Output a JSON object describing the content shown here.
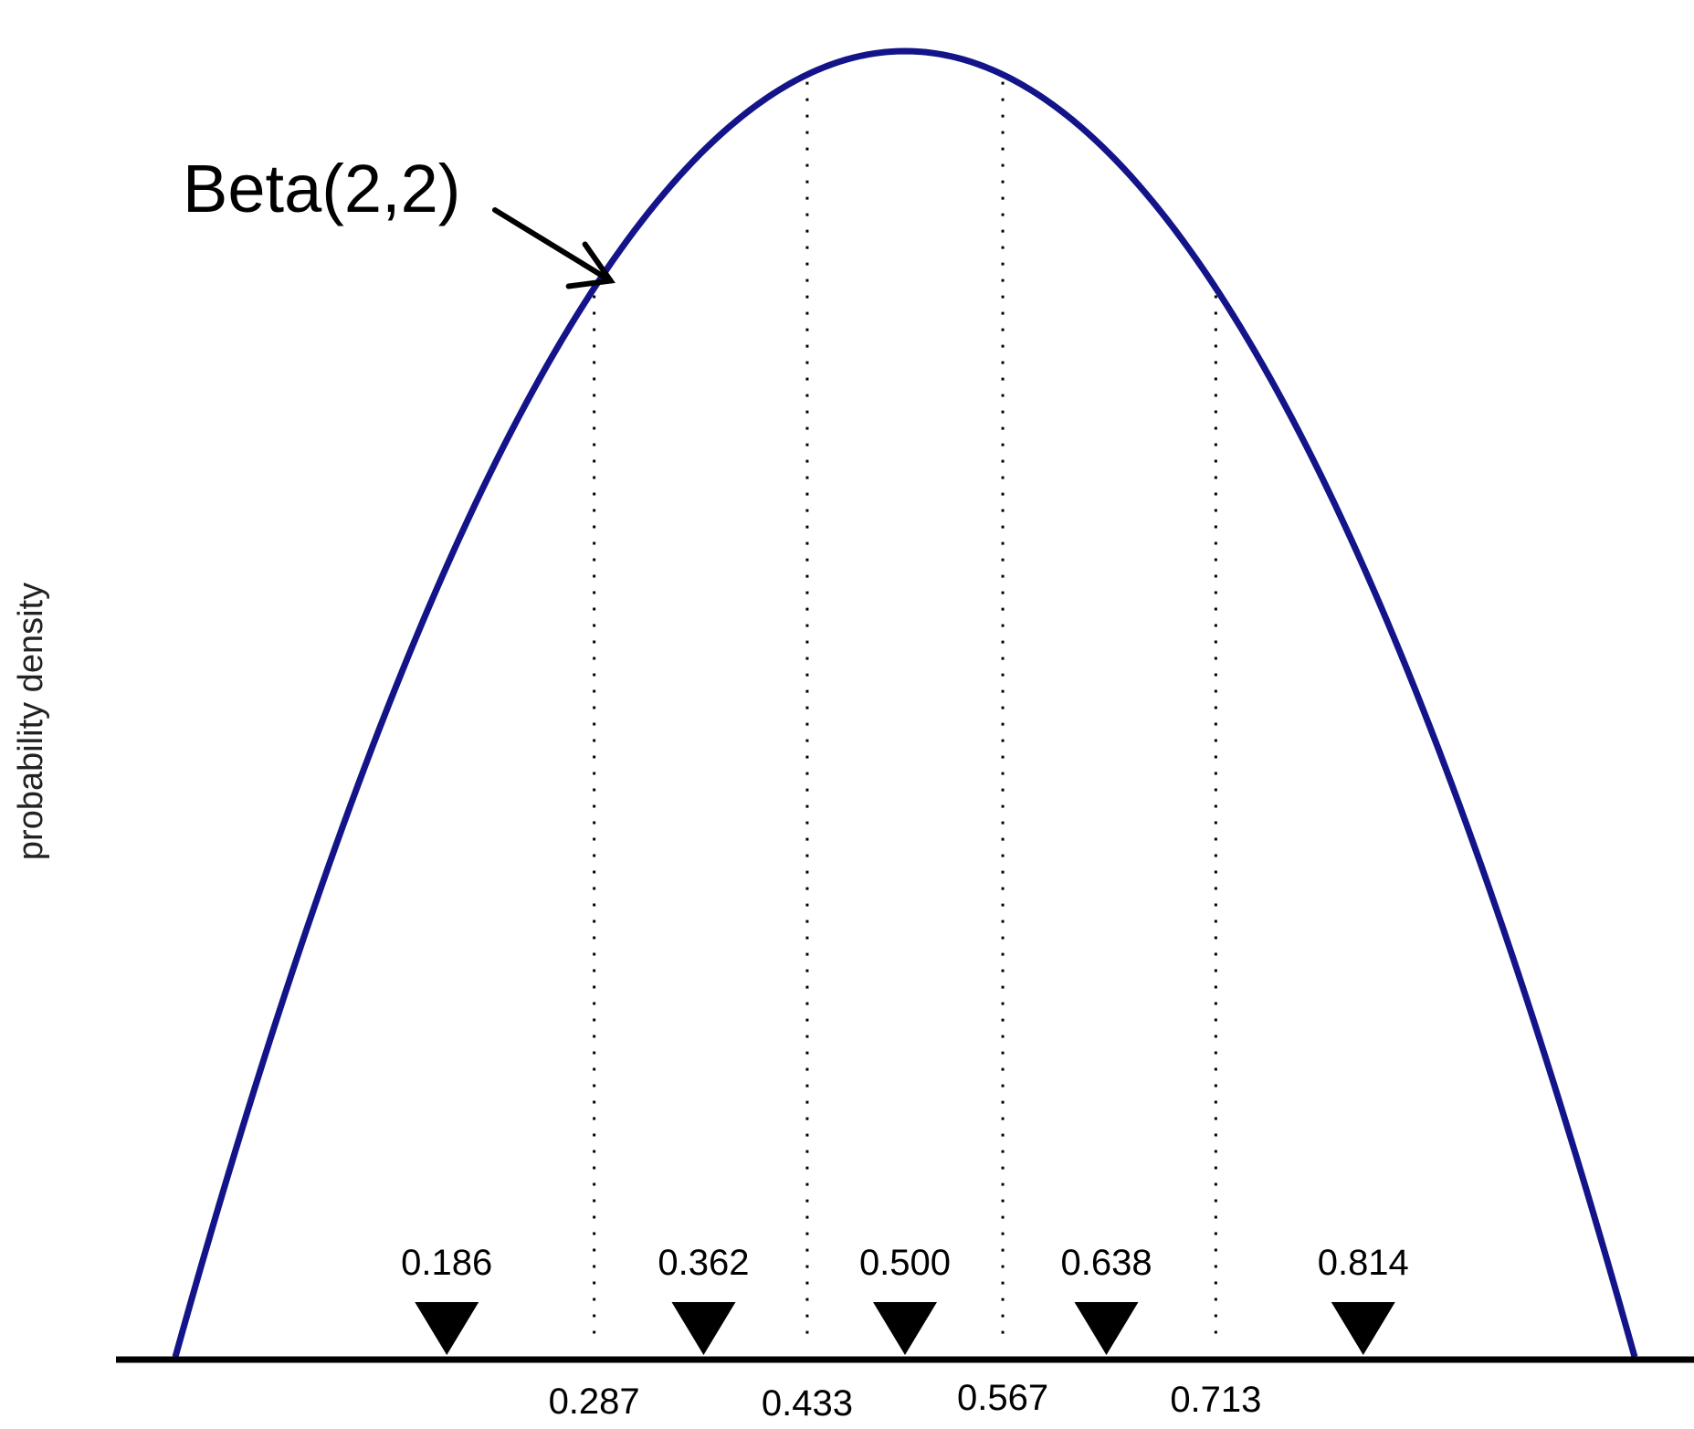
{
  "chart_data": {
    "type": "line",
    "title": "",
    "xlabel": "",
    "ylabel": "probability density",
    "xlim": [
      0,
      1
    ],
    "ylim": [
      0,
      1.5
    ],
    "series": [
      {
        "name": "Beta(2,2)",
        "function": "6x(1-x)",
        "x": [
          0,
          0.05,
          0.1,
          0.15,
          0.2,
          0.25,
          0.3,
          0.35,
          0.4,
          0.45,
          0.5,
          0.55,
          0.6,
          0.65,
          0.7,
          0.75,
          0.8,
          0.85,
          0.9,
          0.95,
          1
        ],
        "y": [
          0,
          0.285,
          0.54,
          0.765,
          0.96,
          1.125,
          1.26,
          1.365,
          1.44,
          1.485,
          1.5,
          1.485,
          1.44,
          1.365,
          1.26,
          1.125,
          0.96,
          0.765,
          0.54,
          0.285,
          0
        ],
        "color": "#14148a"
      }
    ],
    "bin_boundaries": [
      0.287,
      0.433,
      0.567,
      0.713
    ],
    "bin_boundary_labels": [
      "0.287",
      "0.433",
      "0.567",
      "0.713"
    ],
    "markers": [
      0.186,
      0.362,
      0.5,
      0.638,
      0.814
    ],
    "marker_labels": [
      "0.186",
      "0.362",
      "0.500",
      "0.638",
      "0.814"
    ],
    "annotation": {
      "text": "Beta(2,2)",
      "points_to_x": 0.287
    },
    "axis_color": "#000000"
  }
}
